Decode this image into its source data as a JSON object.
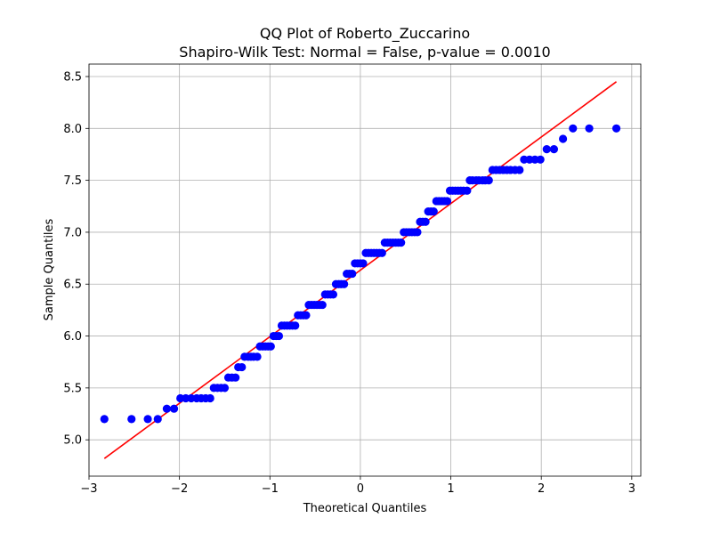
{
  "chart_data": {
    "type": "scatter",
    "title": "QQ Plot of Roberto_Zuccarino",
    "subtitle": "Shapiro-Wilk Test: Normal = False, p-value = 0.0010",
    "xlabel": "Theoretical Quantiles",
    "ylabel": "Sample Quantiles",
    "xlim": [
      -3.0,
      3.1
    ],
    "ylim": [
      4.65,
      8.62
    ],
    "xticks": [
      -3,
      -2,
      -1,
      0,
      1,
      2,
      3
    ],
    "xtick_labels": [
      "−3",
      "−2",
      "−1",
      "0",
      "1",
      "2",
      "3"
    ],
    "yticks": [
      5.0,
      5.5,
      6.0,
      6.5,
      7.0,
      7.5,
      8.0,
      8.5
    ],
    "ytick_labels": [
      "5.0",
      "5.5",
      "6.0",
      "6.5",
      "7.0",
      "7.5",
      "8.0",
      "8.5"
    ],
    "grid": true,
    "points_color": "#0000ff",
    "line_color": "#ff0000",
    "fit_line": {
      "x": [
        -2.83,
        2.83
      ],
      "y": [
        4.82,
        8.45
      ]
    },
    "points": [
      {
        "x": -2.83,
        "y": 5.2
      },
      {
        "x": -2.53,
        "y": 5.2
      },
      {
        "x": -2.35,
        "y": 5.2
      },
      {
        "x": -2.24,
        "y": 5.2
      },
      {
        "x": -2.14,
        "y": 5.3
      },
      {
        "x": -2.06,
        "y": 5.3
      },
      {
        "x": -1.99,
        "y": 5.4
      },
      {
        "x": -1.93,
        "y": 5.4
      },
      {
        "x": -1.87,
        "y": 5.4
      },
      {
        "x": -1.81,
        "y": 5.4
      },
      {
        "x": -1.76,
        "y": 5.4
      },
      {
        "x": -1.71,
        "y": 5.4
      },
      {
        "x": -1.66,
        "y": 5.4
      },
      {
        "x": -1.62,
        "y": 5.5
      },
      {
        "x": -1.58,
        "y": 5.5
      },
      {
        "x": -1.54,
        "y": 5.5
      },
      {
        "x": -1.5,
        "y": 5.5
      },
      {
        "x": -1.46,
        "y": 5.6
      },
      {
        "x": -1.42,
        "y": 5.6
      },
      {
        "x": -1.38,
        "y": 5.6
      },
      {
        "x": -1.35,
        "y": 5.7
      },
      {
        "x": -1.31,
        "y": 5.7
      },
      {
        "x": -1.28,
        "y": 5.8
      },
      {
        "x": -1.24,
        "y": 5.8
      },
      {
        "x": -1.21,
        "y": 5.8
      },
      {
        "x": -1.18,
        "y": 5.8
      },
      {
        "x": -1.14,
        "y": 5.8
      },
      {
        "x": -1.11,
        "y": 5.9
      },
      {
        "x": -1.08,
        "y": 5.9
      },
      {
        "x": -1.05,
        "y": 5.9
      },
      {
        "x": -1.02,
        "y": 5.9
      },
      {
        "x": -0.99,
        "y": 5.9
      },
      {
        "x": -0.96,
        "y": 6.0
      },
      {
        "x": -0.93,
        "y": 6.0
      },
      {
        "x": -0.9,
        "y": 6.0
      },
      {
        "x": -0.87,
        "y": 6.1
      },
      {
        "x": -0.84,
        "y": 6.1
      },
      {
        "x": -0.81,
        "y": 6.1
      },
      {
        "x": -0.78,
        "y": 6.1
      },
      {
        "x": -0.75,
        "y": 6.1
      },
      {
        "x": -0.72,
        "y": 6.1
      },
      {
        "x": -0.69,
        "y": 6.2
      },
      {
        "x": -0.66,
        "y": 6.2
      },
      {
        "x": -0.63,
        "y": 6.2
      },
      {
        "x": -0.6,
        "y": 6.2
      },
      {
        "x": -0.57,
        "y": 6.3
      },
      {
        "x": -0.54,
        "y": 6.3
      },
      {
        "x": -0.51,
        "y": 6.3
      },
      {
        "x": -0.48,
        "y": 6.3
      },
      {
        "x": -0.45,
        "y": 6.3
      },
      {
        "x": -0.42,
        "y": 6.3
      },
      {
        "x": -0.39,
        "y": 6.4
      },
      {
        "x": -0.36,
        "y": 6.4
      },
      {
        "x": -0.33,
        "y": 6.4
      },
      {
        "x": -0.3,
        "y": 6.4
      },
      {
        "x": -0.27,
        "y": 6.5
      },
      {
        "x": -0.24,
        "y": 6.5
      },
      {
        "x": -0.21,
        "y": 6.5
      },
      {
        "x": -0.18,
        "y": 6.5
      },
      {
        "x": -0.15,
        "y": 6.6
      },
      {
        "x": -0.12,
        "y": 6.6
      },
      {
        "x": -0.09,
        "y": 6.6
      },
      {
        "x": -0.06,
        "y": 6.7
      },
      {
        "x": -0.03,
        "y": 6.7
      },
      {
        "x": 0.0,
        "y": 6.7
      },
      {
        "x": 0.03,
        "y": 6.7
      },
      {
        "x": 0.06,
        "y": 6.8
      },
      {
        "x": 0.09,
        "y": 6.8
      },
      {
        "x": 0.12,
        "y": 6.8
      },
      {
        "x": 0.15,
        "y": 6.8
      },
      {
        "x": 0.18,
        "y": 6.8
      },
      {
        "x": 0.21,
        "y": 6.8
      },
      {
        "x": 0.24,
        "y": 6.8
      },
      {
        "x": 0.27,
        "y": 6.9
      },
      {
        "x": 0.3,
        "y": 6.9
      },
      {
        "x": 0.33,
        "y": 6.9
      },
      {
        "x": 0.36,
        "y": 6.9
      },
      {
        "x": 0.39,
        "y": 6.9
      },
      {
        "x": 0.42,
        "y": 6.9
      },
      {
        "x": 0.45,
        "y": 6.9
      },
      {
        "x": 0.48,
        "y": 7.0
      },
      {
        "x": 0.51,
        "y": 7.0
      },
      {
        "x": 0.54,
        "y": 7.0
      },
      {
        "x": 0.57,
        "y": 7.0
      },
      {
        "x": 0.6,
        "y": 7.0
      },
      {
        "x": 0.63,
        "y": 7.0
      },
      {
        "x": 0.66,
        "y": 7.1
      },
      {
        "x": 0.69,
        "y": 7.1
      },
      {
        "x": 0.72,
        "y": 7.1
      },
      {
        "x": 0.75,
        "y": 7.2
      },
      {
        "x": 0.78,
        "y": 7.2
      },
      {
        "x": 0.81,
        "y": 7.2
      },
      {
        "x": 0.84,
        "y": 7.3
      },
      {
        "x": 0.87,
        "y": 7.3
      },
      {
        "x": 0.9,
        "y": 7.3
      },
      {
        "x": 0.93,
        "y": 7.3
      },
      {
        "x": 0.96,
        "y": 7.3
      },
      {
        "x": 0.99,
        "y": 7.4
      },
      {
        "x": 1.02,
        "y": 7.4
      },
      {
        "x": 1.05,
        "y": 7.4
      },
      {
        "x": 1.08,
        "y": 7.4
      },
      {
        "x": 1.11,
        "y": 7.4
      },
      {
        "x": 1.14,
        "y": 7.4
      },
      {
        "x": 1.18,
        "y": 7.4
      },
      {
        "x": 1.21,
        "y": 7.5
      },
      {
        "x": 1.24,
        "y": 7.5
      },
      {
        "x": 1.28,
        "y": 7.5
      },
      {
        "x": 1.31,
        "y": 7.5
      },
      {
        "x": 1.35,
        "y": 7.5
      },
      {
        "x": 1.38,
        "y": 7.5
      },
      {
        "x": 1.42,
        "y": 7.5
      },
      {
        "x": 1.46,
        "y": 7.6
      },
      {
        "x": 1.5,
        "y": 7.6
      },
      {
        "x": 1.54,
        "y": 7.6
      },
      {
        "x": 1.58,
        "y": 7.6
      },
      {
        "x": 1.62,
        "y": 7.6
      },
      {
        "x": 1.66,
        "y": 7.6
      },
      {
        "x": 1.71,
        "y": 7.6
      },
      {
        "x": 1.76,
        "y": 7.6
      },
      {
        "x": 1.81,
        "y": 7.7
      },
      {
        "x": 1.87,
        "y": 7.7
      },
      {
        "x": 1.93,
        "y": 7.7
      },
      {
        "x": 1.99,
        "y": 7.7
      },
      {
        "x": 2.06,
        "y": 7.8
      },
      {
        "x": 2.14,
        "y": 7.8
      },
      {
        "x": 2.24,
        "y": 7.9
      },
      {
        "x": 2.35,
        "y": 8.0
      },
      {
        "x": 2.53,
        "y": 8.0
      },
      {
        "x": 2.83,
        "y": 8.0
      }
    ]
  }
}
